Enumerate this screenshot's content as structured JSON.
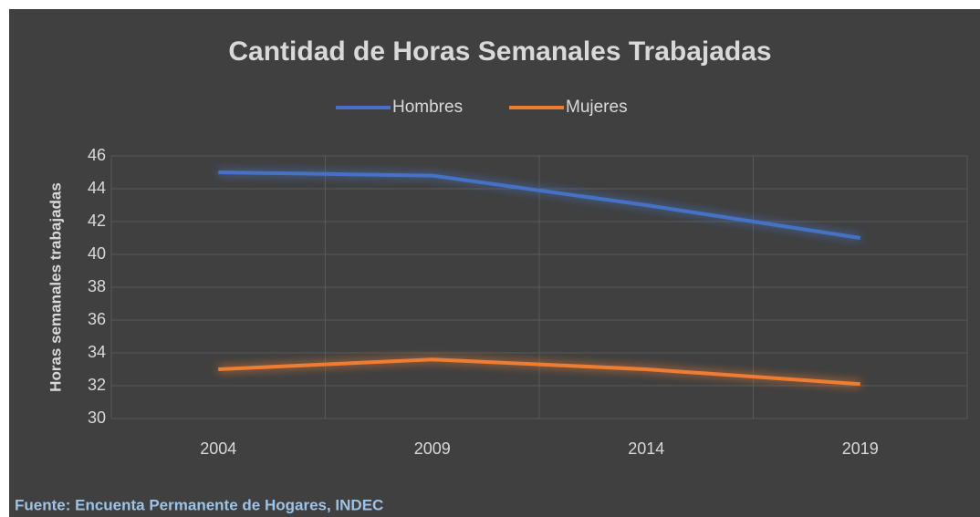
{
  "chart_data": {
    "type": "line",
    "title": "Cantidad de Horas Semanales Trabajadas",
    "y_label": "Horas semanales trabajadas",
    "source": "Fuente: Encuenta Permanente de Hogares, INDEC",
    "categories": [
      "2004",
      "2009",
      "2014",
      "2019"
    ],
    "series": [
      {
        "name": "Hombres",
        "color": "#4472c4",
        "values": [
          45,
          44.8,
          43,
          41
        ]
      },
      {
        "name": "Mujeres",
        "color": "#ed7d31",
        "values": [
          33,
          33.6,
          33,
          32.1
        ]
      }
    ],
    "ylim": [
      30,
      46
    ],
    "yticks": [
      30,
      32,
      34,
      36,
      38,
      40,
      42,
      44,
      46
    ],
    "grid": true,
    "legend": "top"
  }
}
